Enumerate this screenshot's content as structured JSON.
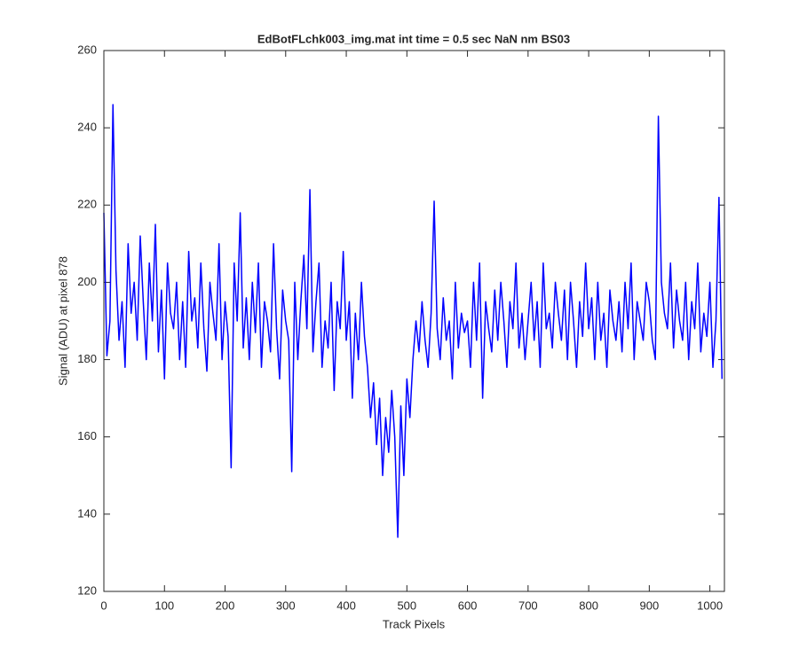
{
  "chart_data": {
    "type": "line",
    "title": "EdBotFLchk003_img.mat int time = 0.5 sec  NaN nm BS03",
    "x_label": "Track Pixels",
    "y_label": "Signal (ADU) at pixel 878",
    "color": "#0000ff",
    "xlim": [
      0,
      1024
    ],
    "ylim": [
      120,
      260
    ],
    "xticks": [
      0,
      100,
      200,
      300,
      400,
      500,
      600,
      700,
      800,
      900,
      1000
    ],
    "yticks": [
      120,
      140,
      160,
      180,
      200,
      220,
      240,
      260
    ],
    "x": [
      0,
      5,
      10,
      15,
      20,
      25,
      30,
      35,
      40,
      45,
      50,
      55,
      60,
      65,
      70,
      75,
      80,
      85,
      90,
      95,
      100,
      105,
      110,
      115,
      120,
      125,
      130,
      135,
      140,
      145,
      150,
      155,
      160,
      165,
      170,
      175,
      180,
      185,
      190,
      195,
      200,
      205,
      210,
      215,
      220,
      225,
      230,
      235,
      240,
      245,
      250,
      255,
      260,
      265,
      270,
      275,
      280,
      285,
      290,
      295,
      300,
      305,
      310,
      315,
      320,
      325,
      330,
      335,
      340,
      345,
      350,
      355,
      360,
      365,
      370,
      375,
      380,
      385,
      390,
      395,
      400,
      405,
      410,
      415,
      420,
      425,
      430,
      435,
      440,
      445,
      450,
      455,
      460,
      465,
      470,
      475,
      480,
      485,
      490,
      495,
      500,
      505,
      510,
      515,
      520,
      525,
      530,
      535,
      540,
      545,
      550,
      555,
      560,
      565,
      570,
      575,
      580,
      585,
      590,
      595,
      600,
      605,
      610,
      615,
      620,
      625,
      630,
      635,
      640,
      645,
      650,
      655,
      660,
      665,
      670,
      675,
      680,
      685,
      690,
      695,
      700,
      705,
      710,
      715,
      720,
      725,
      730,
      735,
      740,
      745,
      750,
      755,
      760,
      765,
      770,
      775,
      780,
      785,
      790,
      795,
      800,
      805,
      810,
      815,
      820,
      825,
      830,
      835,
      840,
      845,
      850,
      855,
      860,
      865,
      870,
      875,
      880,
      885,
      890,
      895,
      900,
      905,
      910,
      915,
      920,
      925,
      930,
      935,
      940,
      945,
      950,
      955,
      960,
      965,
      970,
      975,
      980,
      985,
      990,
      995,
      1000,
      1005,
      1010,
      1015,
      1020
    ],
    "values": [
      218,
      181,
      190,
      246,
      203,
      185,
      195,
      178,
      210,
      192,
      200,
      185,
      212,
      195,
      180,
      205,
      190,
      215,
      182,
      198,
      175,
      205,
      192,
      188,
      200,
      180,
      195,
      178,
      208,
      190,
      196,
      183,
      205,
      188,
      177,
      200,
      192,
      185,
      210,
      180,
      195,
      186,
      152,
      205,
      190,
      218,
      183,
      196,
      180,
      200,
      187,
      205,
      178,
      195,
      190,
      182,
      210,
      188,
      175,
      198,
      190,
      185,
      151,
      200,
      180,
      195,
      207,
      188,
      224,
      182,
      195,
      205,
      178,
      190,
      183,
      200,
      172,
      195,
      188,
      208,
      185,
      195,
      170,
      192,
      180,
      200,
      186,
      178,
      165,
      174,
      158,
      170,
      150,
      165,
      156,
      172,
      160,
      134,
      168,
      150,
      175,
      165,
      180,
      190,
      182,
      195,
      185,
      178,
      192,
      221,
      188,
      180,
      196,
      185,
      190,
      175,
      200,
      183,
      192,
      187,
      190,
      178,
      200,
      185,
      205,
      170,
      195,
      188,
      182,
      198,
      185,
      200,
      190,
      178,
      195,
      188,
      205,
      183,
      192,
      180,
      190,
      200,
      185,
      195,
      178,
      205,
      188,
      192,
      183,
      200,
      192,
      185,
      198,
      180,
      200,
      190,
      178,
      195,
      186,
      205,
      188,
      196,
      180,
      200,
      185,
      192,
      178,
      198,
      190,
      185,
      195,
      182,
      200,
      188,
      205,
      180,
      195,
      190,
      185,
      200,
      195,
      185,
      180,
      243,
      200,
      192,
      188,
      205,
      183,
      198,
      190,
      185,
      200,
      180,
      195,
      188,
      205,
      182,
      192,
      186,
      200,
      178,
      190,
      222,
      175
    ]
  }
}
